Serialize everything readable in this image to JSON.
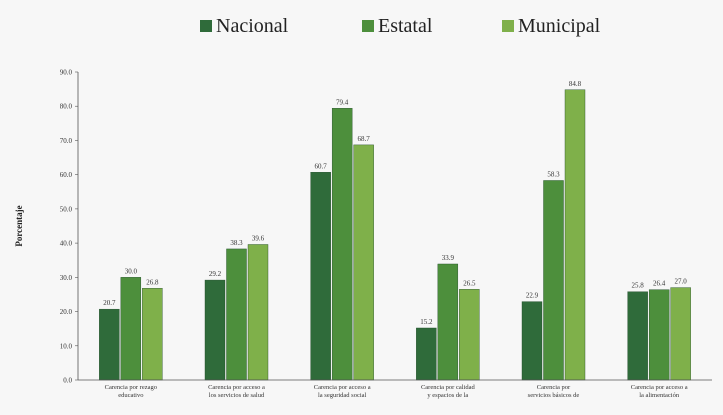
{
  "chart_data": {
    "type": "bar",
    "title": "",
    "xlabel": "",
    "ylabel": "Porcentaje",
    "ylim": [
      0,
      90
    ],
    "yticks": [
      "0.0",
      "10.0",
      "20.0",
      "30.0",
      "40.0",
      "50.0",
      "60.0",
      "70.0",
      "80.0",
      "90.0"
    ],
    "legend_position": "top-center",
    "grid": false,
    "categories": [
      [
        "Carencia por rezago",
        "educativo"
      ],
      [
        "Carencia por acceso a",
        "los servicios de salud"
      ],
      [
        "Carencia por acceso a",
        "la seguridad social"
      ],
      [
        "Carencia por calidad",
        "y espacios de la"
      ],
      [
        "Carencia por",
        "servicios básicos de"
      ],
      [
        "Carencia por acceso a",
        "la alimentación"
      ]
    ],
    "series": [
      {
        "name": "Nacional",
        "color": "#2f6b3a",
        "values": [
          20.7,
          29.2,
          60.7,
          15.2,
          22.9,
          25.8
        ],
        "labels": [
          "20.7",
          "29.2",
          "60.7",
          "15.2",
          "22.9",
          "25.8"
        ]
      },
      {
        "name": "Estatal",
        "color": "#4d8f3c",
        "values": [
          30.0,
          38.3,
          79.4,
          33.9,
          58.3,
          26.4
        ],
        "labels": [
          "30.0",
          "38.3",
          "79.4",
          "33.9",
          "58.3",
          "26.4"
        ]
      },
      {
        "name": "Municipal",
        "color": "#7fb04a",
        "values": [
          26.8,
          39.6,
          68.7,
          26.5,
          84.8,
          27.0
        ],
        "labels": [
          "26.8",
          "39.6",
          "68.7",
          "26.5",
          "84.8",
          "27.0"
        ]
      }
    ]
  }
}
